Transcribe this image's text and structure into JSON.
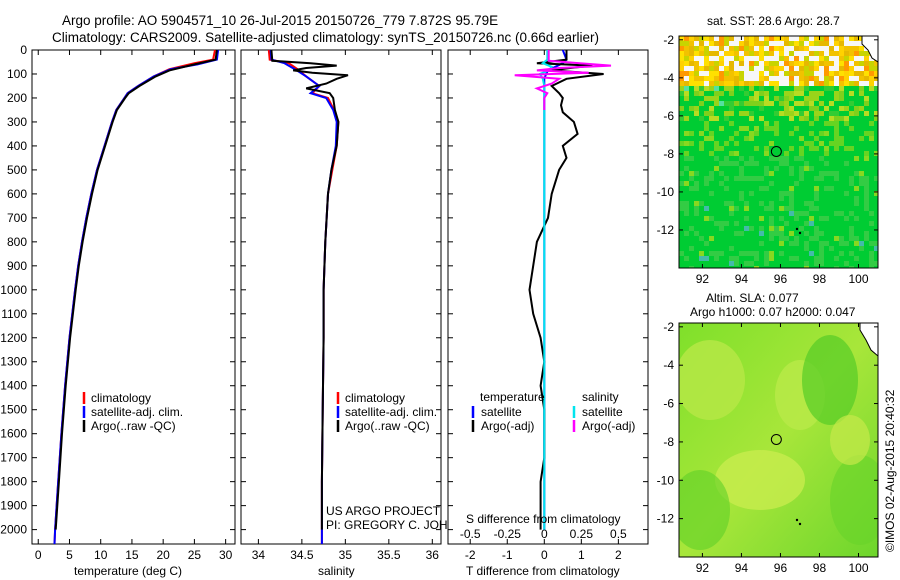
{
  "title_line1": "Argo profile: AO 5904571_10 26-Jul-2015 20150726_779 7.872S 95.79E",
  "title_line2": "Climatology: CARS2009. Satellite-adjusted climatology: synTS_20150726.nc (0.66d earlier)",
  "credit_line1": "US ARGO PROJECT",
  "credit_line2": "PI: GREGORY C. JOHNSON",
  "imos_stamp": "©IMOS 02-Aug-2015 20:40:32",
  "colors": {
    "climatology": "#ff0000",
    "satellite": "#0000ff",
    "argo": "#000000",
    "sal_satellite": "#00e5ee",
    "sal_argo": "#ff00ff"
  },
  "chart_data": [
    {
      "id": "temperature-profile",
      "type": "line",
      "xlabel": "temperature (deg C)",
      "ylabel": "",
      "xlim": [
        -1,
        31.5
      ],
      "ylim": [
        2060,
        0
      ],
      "xticks": [
        0,
        5,
        10,
        15,
        20,
        25,
        30
      ],
      "yticks": [
        0,
        100,
        200,
        300,
        400,
        500,
        600,
        700,
        800,
        900,
        1000,
        1100,
        1200,
        1300,
        1400,
        1500,
        1600,
        1700,
        1800,
        1900,
        2000
      ],
      "legend": [
        "climatology",
        "satellite-adj. clim.",
        "Argo(..raw -QC)"
      ],
      "legend_position": "lower-middle",
      "series": [
        {
          "name": "climatology",
          "depth": [
            0,
            40,
            55,
            80,
            110,
            150,
            180,
            200,
            250,
            300,
            400,
            500,
            600,
            700,
            800,
            900,
            1000,
            1200,
            1400,
            1600,
            1800,
            2000,
            2060
          ],
          "values": [
            28.3,
            28.0,
            25.0,
            21.0,
            18.5,
            16.0,
            14.3,
            13.8,
            12.5,
            11.8,
            10.6,
            9.4,
            8.5,
            7.7,
            7.0,
            6.4,
            5.9,
            5.0,
            4.3,
            3.7,
            3.2,
            2.7,
            2.6
          ]
        },
        {
          "name": "satellite-adj. clim.",
          "depth": [
            0,
            40,
            60,
            80,
            110,
            150,
            180,
            200,
            250,
            300,
            400,
            500,
            600,
            700,
            800,
            900,
            1000,
            1200,
            1400,
            1600,
            1800,
            2000,
            2060
          ],
          "values": [
            28.8,
            28.6,
            25.5,
            21.2,
            18.5,
            16.0,
            14.3,
            13.8,
            12.5,
            11.8,
            10.6,
            9.4,
            8.5,
            7.7,
            7.0,
            6.4,
            5.9,
            5.0,
            4.3,
            3.7,
            3.2,
            2.7,
            2.6
          ]
        },
        {
          "name": "Argo(..raw -QC)",
          "depth": [
            0,
            40,
            60,
            85,
            110,
            150,
            180,
            200,
            250,
            300,
            400,
            500,
            600,
            700,
            800,
            900,
            1000,
            1200,
            1400,
            1600,
            1800,
            2000
          ],
          "values": [
            28.6,
            28.4,
            25.0,
            21.0,
            18.8,
            16.2,
            14.5,
            13.9,
            12.6,
            11.9,
            10.7,
            9.5,
            8.6,
            7.8,
            7.1,
            6.5,
            6.0,
            5.1,
            4.4,
            3.8,
            3.3,
            2.8
          ]
        }
      ]
    },
    {
      "id": "salinity-profile",
      "type": "line",
      "xlabel": "salinity",
      "xlim": [
        33.8,
        36.1
      ],
      "ylim": [
        2060,
        0
      ],
      "xticks": [
        34,
        34.5,
        35,
        35.5,
        36
      ],
      "legend": [
        "climatology",
        "satellite-adj. clim.",
        "Argo(..raw -QC)"
      ],
      "legend_position": "lower-right",
      "series": [
        {
          "name": "climatology",
          "depth": [
            0,
            40,
            55,
            80,
            110,
            150,
            180,
            200,
            250,
            300,
            400,
            500,
            600,
            800,
            1000,
            1200,
            1500,
            1800,
            2060
          ],
          "values": [
            34.12,
            34.13,
            34.35,
            34.45,
            34.55,
            34.7,
            34.62,
            34.8,
            34.87,
            34.92,
            34.9,
            34.85,
            34.8,
            34.77,
            34.75,
            34.75,
            34.74,
            34.73,
            34.73
          ]
        },
        {
          "name": "satellite-adj. clim.",
          "depth": [
            0,
            40,
            55,
            80,
            110,
            150,
            180,
            200,
            250,
            300,
            400,
            500,
            600,
            800,
            1000,
            1200,
            1500,
            1800,
            2060
          ],
          "values": [
            34.14,
            34.15,
            34.3,
            34.42,
            34.55,
            34.7,
            34.6,
            34.78,
            34.86,
            34.9,
            34.89,
            34.84,
            34.8,
            34.77,
            34.75,
            34.75,
            34.74,
            34.73,
            34.73
          ]
        },
        {
          "name": "Argo(..raw -QC)",
          "depth": [
            0,
            45,
            55,
            65,
            75,
            85,
            95,
            105,
            120,
            140,
            160,
            180,
            200,
            250,
            300,
            400,
            500,
            600,
            800,
            1000,
            1200,
            1500,
            1800,
            2000
          ],
          "values": [
            34.15,
            34.16,
            34.6,
            34.9,
            34.55,
            34.4,
            34.62,
            35.03,
            34.9,
            34.78,
            34.55,
            34.82,
            34.86,
            34.88,
            34.92,
            34.9,
            34.84,
            34.8,
            34.77,
            34.75,
            34.75,
            34.74,
            34.73,
            34.73
          ]
        }
      ]
    },
    {
      "id": "difference-profile",
      "type": "line",
      "xlabel": "T difference from climatology",
      "xlabel_top": "S difference from climatology",
      "xlim": [
        -2.6,
        2.8
      ],
      "ylim": [
        2060,
        0
      ],
      "xticks": [
        -2,
        -1,
        0,
        1,
        2
      ],
      "sticks": [
        -0.5,
        -0.25,
        0,
        0.25,
        0.5
      ],
      "legend_headers": [
        "temperature",
        "salinity"
      ],
      "legend": [
        "satellite",
        "Argo(-adj)",
        "satellite",
        "Argo(-adj)"
      ],
      "legend_position": "lower-middle",
      "series": [
        {
          "name": "temperature satellite",
          "depth": [
            0,
            40,
            55,
            70,
            85,
            100,
            120,
            150,
            200,
            300,
            500,
            800,
            1200,
            1600,
            2000
          ],
          "values": [
            0.5,
            0.6,
            0.5,
            0.3,
            0.1,
            0.05,
            0.0,
            0.0,
            0.0,
            0.0,
            0.0,
            0.0,
            0.0,
            0.0,
            0.0
          ]
        },
        {
          "name": "temperature Argo(-adj)",
          "depth": [
            0,
            40,
            55,
            65,
            75,
            85,
            100,
            120,
            150,
            180,
            200,
            230,
            260,
            300,
            350,
            400,
            450,
            500,
            600,
            700,
            800,
            900,
            1000,
            1100,
            1200,
            1300,
            1400,
            1500,
            1600,
            1700,
            1800,
            1900,
            2000
          ],
          "values": [
            0.6,
            0.6,
            -0.2,
            1.3,
            0.7,
            0.2,
            1.6,
            0.6,
            0.2,
            0.4,
            0.5,
            0.45,
            0.5,
            0.8,
            0.9,
            0.5,
            0.6,
            0.4,
            0.2,
            0.1,
            -0.2,
            -0.3,
            -0.4,
            -0.3,
            -0.1,
            0.0,
            -0.1,
            0.0,
            0.0,
            0.0,
            -0.1,
            -0.1,
            -0.1
          ]
        },
        {
          "name": "salinity satellite",
          "depth": [
            0,
            40,
            55,
            70,
            85,
            100,
            120,
            150,
            200,
            300,
            500,
            800,
            1200,
            1600,
            2000
          ],
          "values": [
            0.02,
            0.02,
            -0.01,
            0.05,
            0.03,
            -0.03,
            -0.01,
            0.0,
            0.0,
            0.0,
            0.0,
            0.0,
            0.0,
            0.0,
            0.0
          ]
        },
        {
          "name": "salinity Argo(-adj)",
          "depth": [
            0,
            45,
            55,
            65,
            75,
            85,
            95,
            105,
            120,
            140,
            160,
            180,
            200,
            250
          ],
          "values": [
            0.03,
            0.03,
            0.24,
            0.45,
            0.1,
            -0.05,
            0.3,
            -0.2,
            0.1,
            0.05,
            -0.05,
            0.02,
            0.0,
            0.0
          ]
        }
      ]
    },
    {
      "id": "sst-map",
      "type": "heatmap",
      "title": "sat. SST: 28.6 Argo: 28.7",
      "xlim": [
        90.8,
        101
      ],
      "ylim": [
        -14,
        -1.8
      ],
      "xticks": [
        92,
        94,
        96,
        98,
        100
      ],
      "yticks": [
        -2,
        -4,
        -6,
        -8,
        -10,
        -12
      ],
      "float_position": {
        "lon": 95.79,
        "lat": -7.872
      }
    },
    {
      "id": "sla-map",
      "type": "heatmap",
      "title_line1": "Altim. SLA: 0.077",
      "title_line2": "Argo h1000: 0.07 h2000: 0.047",
      "xlim": [
        90.8,
        101
      ],
      "ylim": [
        -14,
        -1.8
      ],
      "xticks": [
        92,
        94,
        96,
        98,
        100
      ],
      "yticks": [
        -2,
        -4,
        -6,
        -8,
        -10,
        -12
      ],
      "float_position": {
        "lon": 95.79,
        "lat": -7.872
      }
    }
  ]
}
